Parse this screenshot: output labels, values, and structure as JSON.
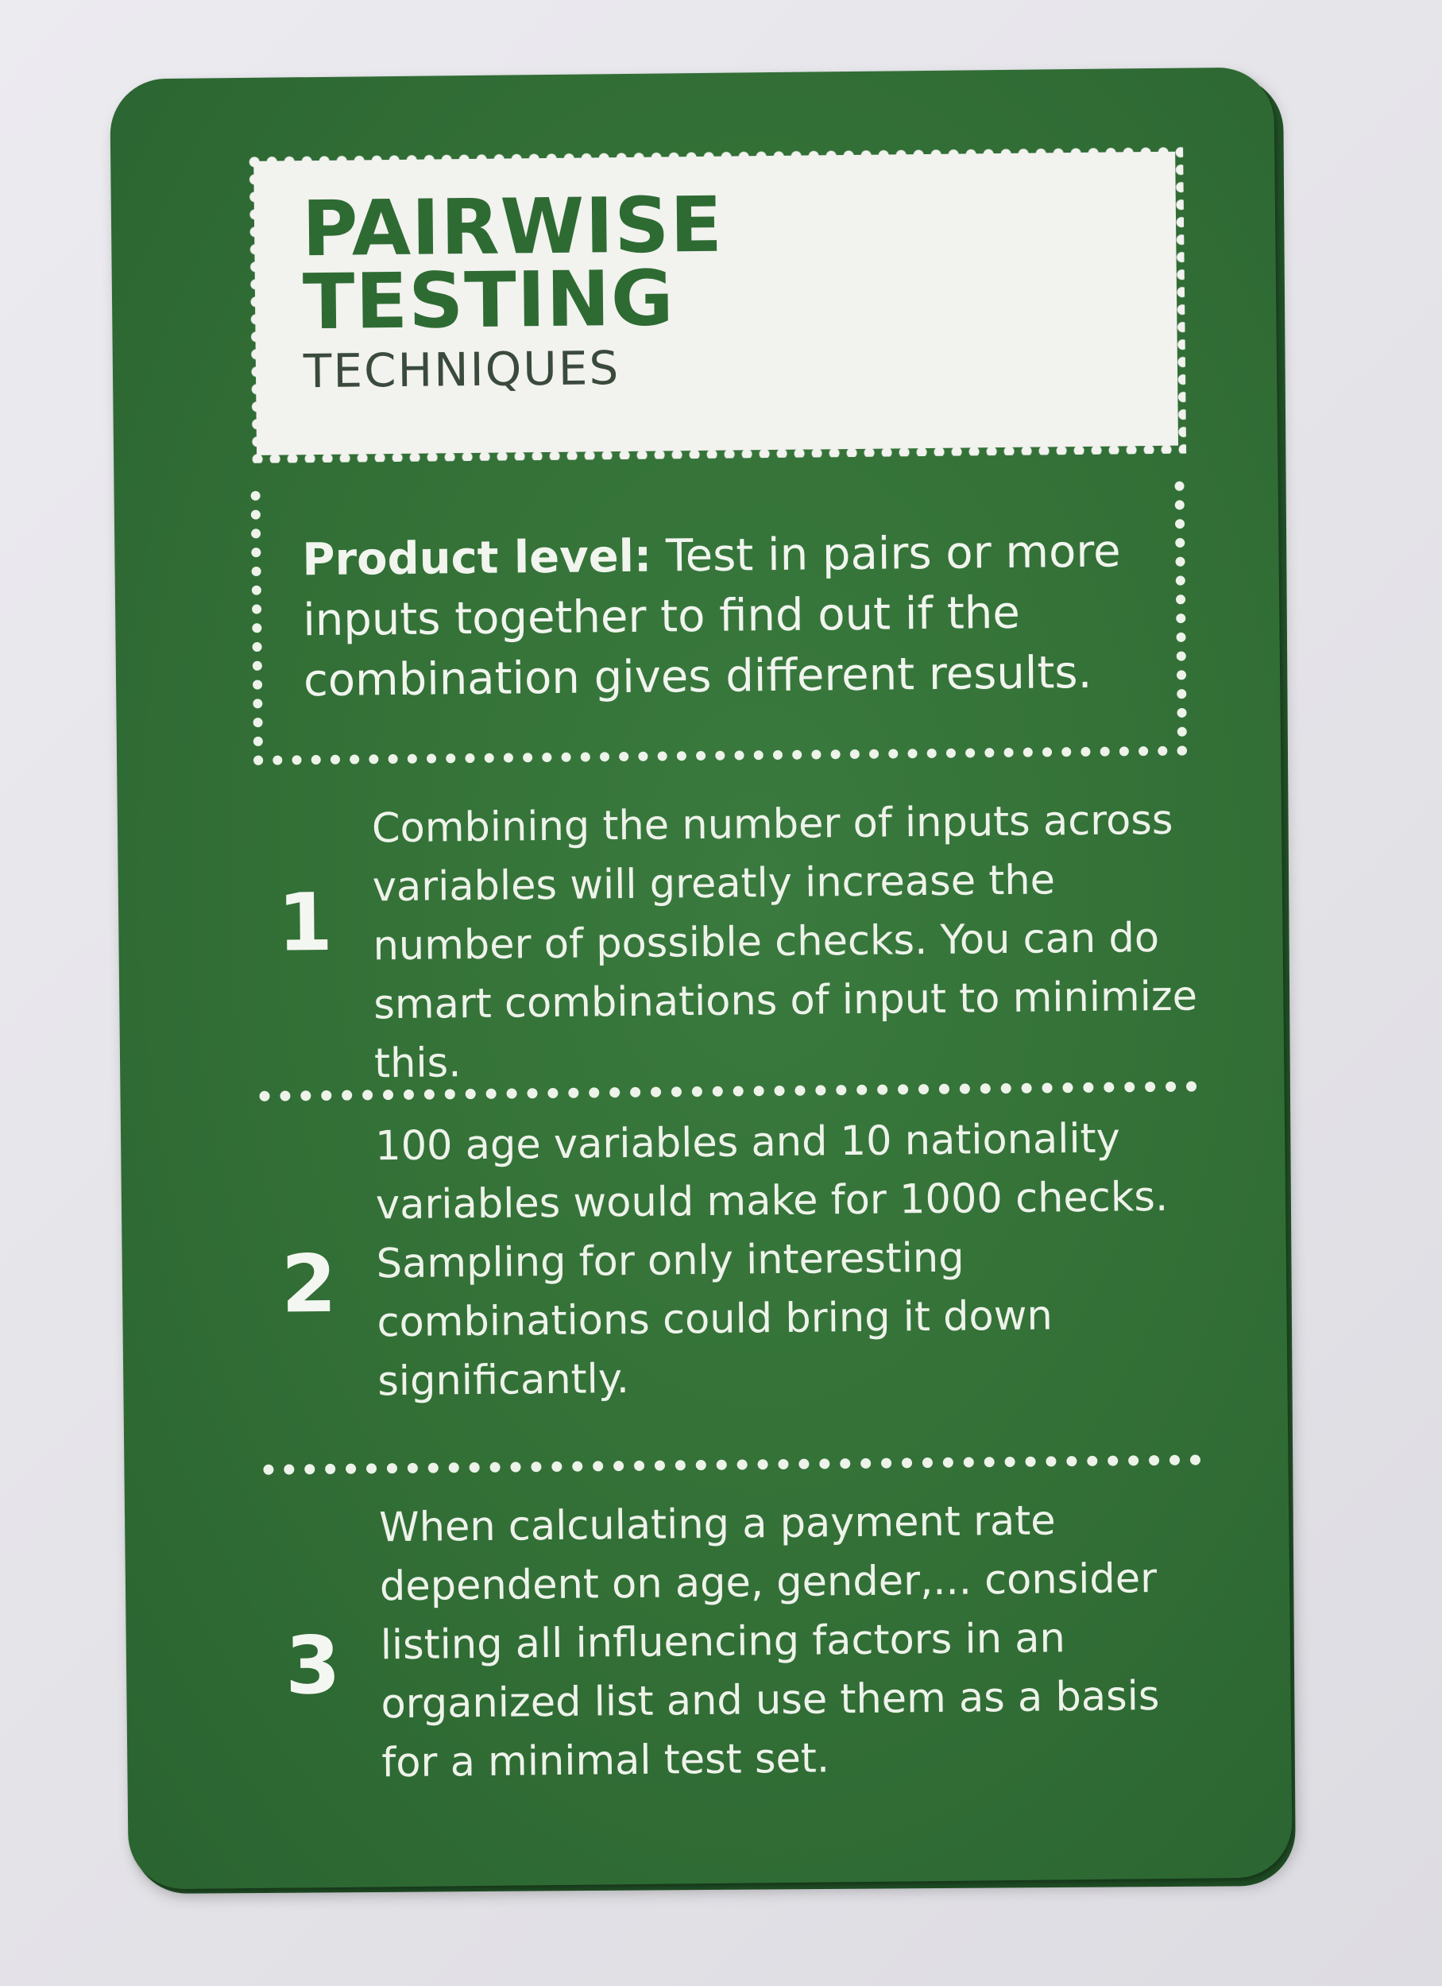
{
  "card": {
    "title_line1": "PAIRWISE",
    "title_line2": "TESTING",
    "subtitle": "TECHNIQUES",
    "level_label": "Product level:",
    "level_text": " Test in pairs or more inputs together to find out if the combination gives different results.",
    "items": [
      {
        "number": "1",
        "text": "Combining the number of inputs across variables will greatly increase the number of possible checks. You can do smart combinations of input to minimize this."
      },
      {
        "number": "2",
        "text": "100 age variables and 10 nationality variables would make for 1000 checks. Sampling for only interesting combinations could bring it down significantly."
      },
      {
        "number": "3",
        "text": "When calculating a payment rate dependent on age, gender,... consider listing all influencing factors in an organized list and use them as a basis for a minimal test set."
      }
    ]
  },
  "colors": {
    "card_green": "#326f36",
    "title_green": "#2e6b33",
    "cream": "#f2f2ef",
    "background": "#e6e5ea"
  }
}
